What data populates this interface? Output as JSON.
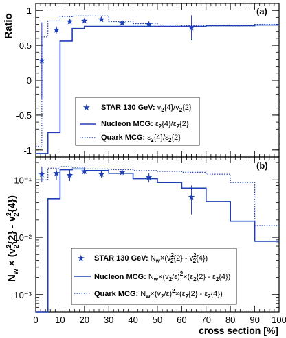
{
  "chart_data": [
    {
      "type": "line",
      "panel_label": "(a)",
      "ylabel": "Ratio",
      "xlabel": "",
      "xlim": [
        0,
        100
      ],
      "ylim": [
        -1.1,
        1.1
      ],
      "yticks": [
        "-1",
        "-0.5",
        "0",
        "0.5",
        "1"
      ],
      "legend_position": "bottom-left",
      "series": [
        {
          "name": "STAR 130 GeV: v2{4}/v2{2}",
          "legend_prefix": "STAR 130 GeV:",
          "legend_formula": "v",
          "style": "star",
          "color": "#1f3fb8",
          "points": [
            {
              "x": 2.5,
              "y": 0.28,
              "yerr": 0.55
            },
            {
              "x": 8.5,
              "y": 0.72,
              "yerr": 0.05
            },
            {
              "x": 14,
              "y": 0.84,
              "yerr": 0.03
            },
            {
              "x": 20,
              "y": 0.85,
              "yerr": 0.02
            },
            {
              "x": 27,
              "y": 0.87,
              "yerr": 0.02
            },
            {
              "x": 35.5,
              "y": 0.82,
              "yerr": 0.02
            },
            {
              "x": 46.5,
              "y": 0.8,
              "yerr": 0.04
            },
            {
              "x": 64,
              "y": 0.75,
              "yerr": 0.18
            }
          ]
        },
        {
          "name": "Nucleon MCG: ε2{4}/ε2{2}",
          "style": "solid",
          "color": "#1f3fb8",
          "steps": [
            {
              "x0": 0,
              "x1": 5,
              "y": -1.05
            },
            {
              "x0": 5,
              "x1": 10,
              "y": -0.75
            },
            {
              "x0": 10,
              "x1": 15,
              "y": 0.56
            },
            {
              "x0": 15,
              "x1": 20,
              "y": 0.74
            },
            {
              "x0": 20,
              "x1": 30,
              "y": 0.77
            },
            {
              "x0": 30,
              "x1": 40,
              "y": 0.77
            },
            {
              "x0": 40,
              "x1": 50,
              "y": 0.77
            },
            {
              "x0": 50,
              "x1": 60,
              "y": 0.77
            },
            {
              "x0": 60,
              "x1": 70,
              "y": 0.77
            },
            {
              "x0": 70,
              "x1": 80,
              "y": 0.78
            },
            {
              "x0": 80,
              "x1": 90,
              "y": 0.78
            },
            {
              "x0": 90,
              "x1": 100,
              "y": 0.79
            }
          ]
        },
        {
          "name": "Quark MCG: ε2{4}/ε2{2}",
          "style": "dotted",
          "color": "#1f3fb8",
          "steps": [
            {
              "x0": 0,
              "x1": 2.5,
              "y": -0.95
            },
            {
              "x0": 2.5,
              "x1": 5,
              "y": 0.62
            },
            {
              "x0": 5,
              "x1": 10,
              "y": 0.85
            },
            {
              "x0": 10,
              "x1": 15,
              "y": 0.91
            },
            {
              "x0": 15,
              "x1": 20,
              "y": 0.92
            },
            {
              "x0": 20,
              "x1": 30,
              "y": 0.92
            },
            {
              "x0": 30,
              "x1": 40,
              "y": 0.84
            },
            {
              "x0": 40,
              "x1": 50,
              "y": 0.81
            },
            {
              "x0": 50,
              "x1": 60,
              "y": 0.79
            },
            {
              "x0": 60,
              "x1": 70,
              "y": 0.78
            },
            {
              "x0": 70,
              "x1": 80,
              "y": 0.79
            },
            {
              "x0": 80,
              "x1": 90,
              "y": 0.79
            },
            {
              "x0": 90,
              "x1": 100,
              "y": 0.8
            }
          ]
        }
      ]
    },
    {
      "type": "line",
      "panel_label": "(b)",
      "ylabel": "N_w × (v_2^2{2} - v_2^2{4})",
      "xlabel": "cross section [%]",
      "xlim": [
        0,
        100
      ],
      "ylim": [
        0.0005,
        0.25
      ],
      "yscale": "log",
      "xticks": [
        "0",
        "10",
        "20",
        "30",
        "40",
        "50",
        "60",
        "70",
        "80",
        "90",
        "100"
      ],
      "yticks": [
        "10⁻³",
        "10⁻²",
        "10⁻¹"
      ],
      "legend_position": "bottom-right",
      "series": [
        {
          "name": "STAR 130 GeV: N_w×(v_2^2{2} - v_2^2{4})",
          "style": "star",
          "color": "#1f3fb8",
          "points": [
            {
              "x": 2.5,
              "y": 0.125,
              "ylo": 0.09,
              "yhi": 0.17
            },
            {
              "x": 8.5,
              "y": 0.13,
              "ylo": 0.1,
              "yhi": 0.16
            },
            {
              "x": 14,
              "y": 0.12,
              "ylo": 0.095,
              "yhi": 0.15
            },
            {
              "x": 20,
              "y": 0.14,
              "ylo": 0.125,
              "yhi": 0.155
            },
            {
              "x": 27,
              "y": 0.125,
              "ylo": 0.11,
              "yhi": 0.14
            },
            {
              "x": 35.5,
              "y": 0.135,
              "ylo": 0.12,
              "yhi": 0.15
            },
            {
              "x": 46.5,
              "y": 0.11,
              "ylo": 0.09,
              "yhi": 0.13
            },
            {
              "x": 64,
              "y": 0.05,
              "ylo": 0.025,
              "yhi": 0.08
            }
          ]
        },
        {
          "name": "Nucleon MCG",
          "style": "solid",
          "color": "#1f3fb8",
          "steps": [
            {
              "x0": 0,
              "x1": 5,
              "y": 0.0004
            },
            {
              "x0": 5,
              "x1": 10,
              "y": 0.047
            },
            {
              "x0": 10,
              "x1": 15,
              "y": 0.15
            },
            {
              "x0": 15,
              "x1": 20,
              "y": 0.155
            },
            {
              "x0": 20,
              "x1": 30,
              "y": 0.145
            },
            {
              "x0": 30,
              "x1": 40,
              "y": 0.13
            },
            {
              "x0": 40,
              "x1": 50,
              "y": 0.105
            },
            {
              "x0": 50,
              "x1": 60,
              "y": 0.09
            },
            {
              "x0": 60,
              "x1": 70,
              "y": 0.072
            },
            {
              "x0": 70,
              "x1": 80,
              "y": 0.042
            },
            {
              "x0": 80,
              "x1": 90,
              "y": 0.019
            },
            {
              "x0": 90,
              "x1": 100,
              "y": 0.0085
            }
          ]
        },
        {
          "name": "Quark MCG",
          "style": "dotted",
          "color": "#1f3fb8",
          "steps": [
            {
              "x0": 0,
              "x1": 5,
              "y": 0.1
            },
            {
              "x0": 5,
              "x1": 10,
              "y": 0.16
            },
            {
              "x0": 10,
              "x1": 15,
              "y": 0.17
            },
            {
              "x0": 15,
              "x1": 20,
              "y": 0.165
            },
            {
              "x0": 20,
              "x1": 30,
              "y": 0.155
            },
            {
              "x0": 30,
              "x1": 40,
              "y": 0.15
            },
            {
              "x0": 40,
              "x1": 50,
              "y": 0.145
            },
            {
              "x0": 50,
              "x1": 60,
              "y": 0.14
            },
            {
              "x0": 60,
              "x1": 70,
              "y": 0.135
            },
            {
              "x0": 70,
              "x1": 80,
              "y": 0.125
            },
            {
              "x0": 80,
              "x1": 90,
              "y": 0.09
            },
            {
              "x0": 90,
              "x1": 100,
              "y": 0.016
            }
          ]
        }
      ]
    }
  ],
  "legend_a": {
    "star": {
      "prefix": "STAR 130 GeV:"
    },
    "nucleon": {
      "prefix": "Nucleon MCG:"
    },
    "quark": {
      "prefix": "Quark MCG:"
    }
  },
  "legend_b": {
    "star": {
      "prefix": "STAR 130 GeV:"
    },
    "nucleon": {
      "prefix": "Nucleon MCG:"
    },
    "quark": {
      "prefix": "Quark MCG:"
    }
  },
  "axis_b_ylabel": "N",
  "xlabel": "cross section [%]"
}
